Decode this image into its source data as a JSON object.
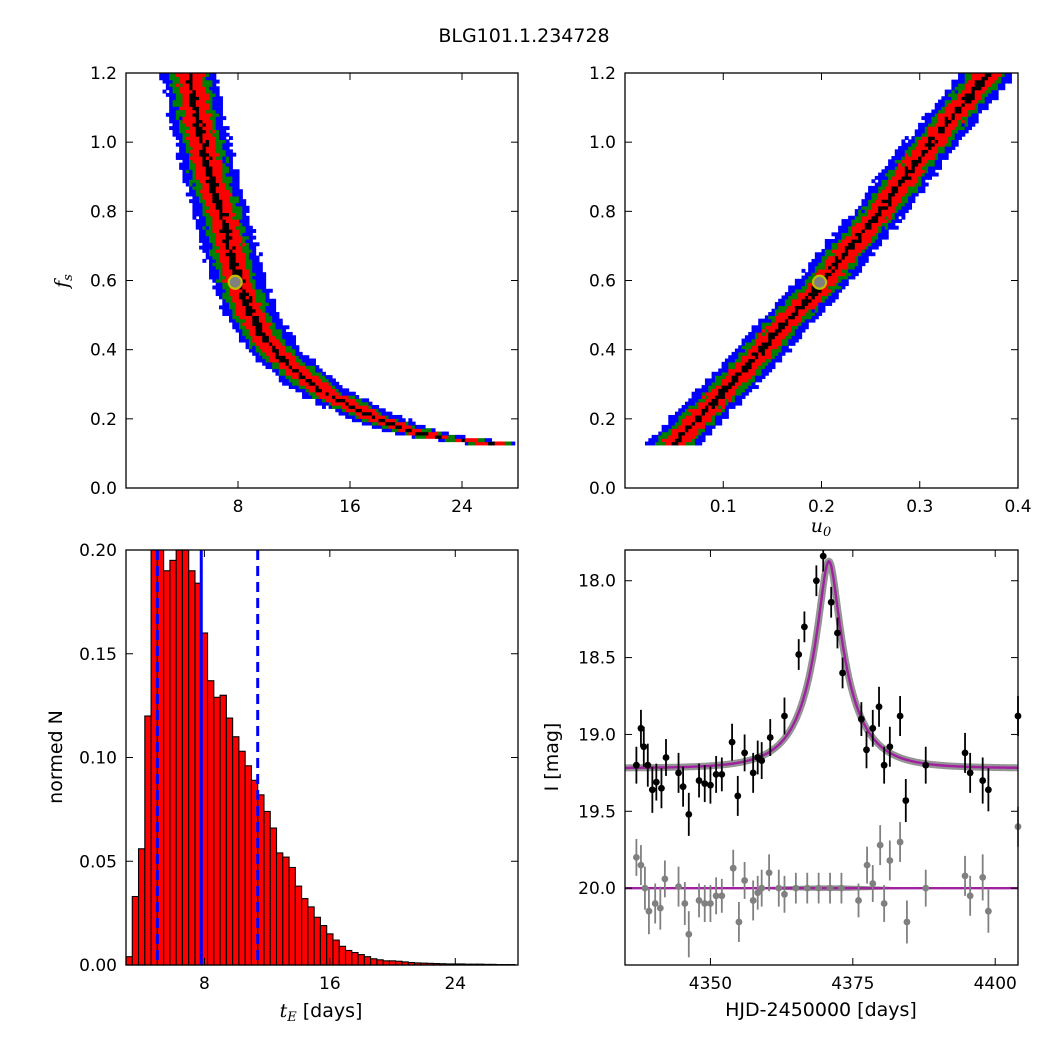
{
  "title": "BLG101.1.234728",
  "colors": {
    "blue": "#0000ff",
    "green": "#007f00",
    "red": "#ff0000",
    "black": "#000000",
    "marker_edge": "#bfbf00",
    "marker_face": "#808080",
    "model": "#a020a0",
    "model_band": "#707070",
    "baseline_points": "#808080"
  },
  "chart_data": [
    {
      "type": "heatmap",
      "panel": "top-left",
      "xlabel": "",
      "ylabel": "f_s",
      "ylabel_main": "f",
      "ylabel_sub": "s",
      "xlim": [
        0,
        28
      ],
      "ylim": [
        0.0,
        1.2
      ],
      "xticks": [
        8,
        16,
        24
      ],
      "yticks": [
        0.0,
        0.2,
        0.4,
        0.6,
        0.8,
        1.0,
        1.2
      ],
      "xtick_labels": [
        "8",
        "16",
        "24"
      ],
      "ytick_labels": [
        "0.0",
        "0.2",
        "0.4",
        "0.6",
        "0.8",
        "1.0",
        "1.2"
      ],
      "ridge": [
        [
          4.5,
          1.2
        ],
        [
          5.2,
          1.05
        ],
        [
          6.0,
          0.9
        ],
        [
          6.8,
          0.8
        ],
        [
          7.5,
          0.68
        ],
        [
          8.0,
          0.6
        ],
        [
          9.0,
          0.5
        ],
        [
          10.0,
          0.43
        ],
        [
          11.0,
          0.38
        ],
        [
          12.5,
          0.33
        ],
        [
          14.0,
          0.28
        ],
        [
          16.0,
          0.24
        ],
        [
          18.0,
          0.2
        ],
        [
          20.0,
          0.17
        ],
        [
          22.0,
          0.15
        ],
        [
          24.0,
          0.14
        ],
        [
          26.0,
          0.13
        ]
      ],
      "best_fit": {
        "x": 7.8,
        "y": 0.595
      }
    },
    {
      "type": "heatmap",
      "panel": "top-right",
      "xlabel": "u_0",
      "xlabel_main": "u",
      "xlabel_sub": "0",
      "ylabel": "",
      "xlim": [
        0.0,
        0.4
      ],
      "ylim": [
        0.0,
        1.2
      ],
      "xticks": [
        0.1,
        0.2,
        0.3,
        0.4
      ],
      "yticks": [
        0.0,
        0.2,
        0.4,
        0.6,
        0.8,
        1.0,
        1.2
      ],
      "xtick_labels": [
        "0.1",
        "0.2",
        "0.3",
        "0.4"
      ],
      "ytick_labels": [
        "0.0",
        "0.2",
        "0.4",
        "0.6",
        "0.8",
        "1.0",
        "1.2"
      ],
      "ridge": [
        [
          0.05,
          0.13
        ],
        [
          0.08,
          0.22
        ],
        [
          0.1,
          0.28
        ],
        [
          0.13,
          0.37
        ],
        [
          0.16,
          0.47
        ],
        [
          0.2,
          0.59
        ],
        [
          0.23,
          0.7
        ],
        [
          0.26,
          0.8
        ],
        [
          0.29,
          0.92
        ],
        [
          0.32,
          1.03
        ],
        [
          0.35,
          1.13
        ],
        [
          0.37,
          1.2
        ]
      ],
      "best_fit": {
        "x": 0.198,
        "y": 0.595
      }
    },
    {
      "type": "bar",
      "panel": "bottom-left",
      "xlabel": "t_E [days]",
      "xlabel_main": "t",
      "xlabel_sub": "E",
      "xlabel_unit": "[days]",
      "ylabel": "normed N",
      "xlim": [
        3,
        28
      ],
      "ylim": [
        0.0,
        0.2
      ],
      "xticks": [
        8,
        16,
        24
      ],
      "yticks": [
        0.0,
        0.05,
        0.1,
        0.15,
        0.2
      ],
      "xtick_labels": [
        "8",
        "16",
        "24"
      ],
      "ytick_labels": [
        "0.00",
        "0.05",
        "0.10",
        "0.15",
        "0.20"
      ],
      "bin_start": 3.0,
      "bin_width": 0.4,
      "values": [
        0.004,
        0.033,
        0.056,
        0.12,
        0.2,
        0.2,
        0.19,
        0.195,
        0.2,
        0.2,
        0.19,
        0.184,
        0.16,
        0.137,
        0.129,
        0.13,
        0.119,
        0.11,
        0.103,
        0.096,
        0.089,
        0.082,
        0.074,
        0.066,
        0.054,
        0.052,
        0.047,
        0.038,
        0.032,
        0.028,
        0.023,
        0.019,
        0.015,
        0.012,
        0.009,
        0.007,
        0.006,
        0.005,
        0.004,
        0.003,
        0.0025,
        0.002,
        0.002,
        0.0018,
        0.0015,
        0.0012,
        0.001,
        0.0009,
        0.0008,
        0.0007,
        0.0006,
        0.0005,
        0.0005,
        0.0005,
        0.0004,
        0.0004,
        0.0004,
        0.0003,
        0.0003,
        0.0002,
        0.0002,
        0.0002
      ],
      "median": 7.8,
      "lower": 5.0,
      "upper": 11.4
    },
    {
      "type": "scatter",
      "panel": "bottom-right",
      "xlabel": "HJD-2450000 [days]",
      "ylabel": "I [mag]",
      "xlim": [
        4335,
        4404
      ],
      "ylim": [
        20.5,
        17.8
      ],
      "y_inverted": true,
      "xticks": [
        4350,
        4375,
        4400
      ],
      "yticks": [
        18.0,
        18.5,
        19.0,
        19.5,
        20.0
      ],
      "xtick_labels": [
        "4350",
        "4375",
        "4400"
      ],
      "ytick_labels": [
        "18.0",
        "18.5",
        "19.0",
        "19.5",
        "20.0"
      ],
      "model": {
        "t0": 4370.8,
        "u0": 0.198,
        "tE": 7.8,
        "fs": 0.595,
        "baseline": 19.22
      },
      "residual_baseline": 20.0,
      "points": [
        [
          4337.0,
          19.2,
          0.12
        ],
        [
          4337.8,
          18.96,
          0.12
        ],
        [
          4338.3,
          19.08,
          0.13
        ],
        [
          4339.0,
          19.2,
          0.14
        ],
        [
          4339.8,
          19.36,
          0.15
        ],
        [
          4340.5,
          19.31,
          0.12
        ],
        [
          4341.4,
          19.35,
          0.13
        ],
        [
          4342.2,
          19.15,
          0.12
        ],
        [
          4344.4,
          19.25,
          0.13
        ],
        [
          4345.2,
          19.34,
          0.13
        ],
        [
          4346.2,
          19.52,
          0.14
        ],
        [
          4348.0,
          19.3,
          0.11
        ],
        [
          4349.0,
          19.32,
          0.12
        ],
        [
          4350.0,
          19.33,
          0.12
        ],
        [
          4351.0,
          19.26,
          0.12
        ],
        [
          4352.0,
          19.26,
          0.11
        ],
        [
          4353.8,
          19.05,
          0.12
        ],
        [
          4354.8,
          19.4,
          0.13
        ],
        [
          4356.0,
          19.12,
          0.12
        ],
        [
          4357.5,
          19.25,
          0.13
        ],
        [
          4358.3,
          19.15,
          0.11
        ],
        [
          4359.0,
          19.17,
          0.12
        ],
        [
          4360.5,
          19.02,
          0.12
        ],
        [
          4363.0,
          18.88,
          0.12
        ],
        [
          4365.5,
          18.48,
          0.1
        ],
        [
          4366.5,
          18.3,
          0.1
        ],
        [
          4368.6,
          18.0,
          0.1
        ],
        [
          4369.8,
          17.84,
          0.1
        ],
        [
          4371.2,
          18.14,
          0.1
        ],
        [
          4372.3,
          18.34,
          0.1
        ],
        [
          4373.2,
          18.6,
          0.1
        ],
        [
          4376.5,
          18.9,
          0.11
        ],
        [
          4377.4,
          19.1,
          0.12
        ],
        [
          4378.5,
          18.96,
          0.12
        ],
        [
          4379.6,
          18.82,
          0.13
        ],
        [
          4380.5,
          19.2,
          0.12
        ],
        [
          4381.5,
          19.08,
          0.13
        ],
        [
          4383.3,
          18.88,
          0.13
        ],
        [
          4384.3,
          19.43,
          0.14
        ],
        [
          4387.8,
          19.2,
          0.12
        ],
        [
          4394.7,
          19.12,
          0.13
        ],
        [
          4395.6,
          19.25,
          0.13
        ],
        [
          4397.8,
          19.3,
          0.15
        ],
        [
          4398.8,
          19.36,
          0.14
        ],
        [
          4404.0,
          18.88,
          0.13
        ]
      ],
      "residual_points": [
        [
          4337.0,
          19.8,
          0.12
        ],
        [
          4337.8,
          19.85,
          0.13
        ],
        [
          4338.5,
          20.0,
          0.14
        ],
        [
          4339.2,
          20.15,
          0.15
        ],
        [
          4340.3,
          20.1,
          0.13
        ],
        [
          4341.2,
          20.13,
          0.14
        ],
        [
          4342.0,
          19.94,
          0.12
        ],
        [
          4344.4,
          19.99,
          0.13
        ],
        [
          4345.5,
          20.1,
          0.14
        ],
        [
          4346.2,
          20.3,
          0.15
        ],
        [
          4348.0,
          20.08,
          0.11
        ],
        [
          4349.0,
          20.1,
          0.12
        ],
        [
          4350.0,
          20.1,
          0.12
        ],
        [
          4351.0,
          20.05,
          0.12
        ],
        [
          4352.0,
          20.05,
          0.11
        ],
        [
          4354.0,
          19.87,
          0.12
        ],
        [
          4355.0,
          20.22,
          0.13
        ],
        [
          4356.0,
          19.95,
          0.12
        ],
        [
          4357.5,
          20.08,
          0.13
        ],
        [
          4358.3,
          20.03,
          0.11
        ],
        [
          4359.0,
          20.0,
          0.12
        ],
        [
          4360.3,
          19.9,
          0.12
        ],
        [
          4362.0,
          20.0,
          0.12
        ],
        [
          4363.0,
          20.04,
          0.12
        ],
        [
          4365.0,
          20.0,
          0.1
        ],
        [
          4367.0,
          20.0,
          0.1
        ],
        [
          4369.0,
          20.0,
          0.1
        ],
        [
          4371.0,
          20.0,
          0.1
        ],
        [
          4373.0,
          20.0,
          0.1
        ],
        [
          4376.0,
          20.08,
          0.11
        ],
        [
          4377.5,
          19.85,
          0.12
        ],
        [
          4378.5,
          19.97,
          0.12
        ],
        [
          4379.8,
          19.72,
          0.13
        ],
        [
          4380.5,
          20.1,
          0.12
        ],
        [
          4381.5,
          19.82,
          0.13
        ],
        [
          4383.3,
          19.7,
          0.13
        ],
        [
          4384.5,
          20.22,
          0.14
        ],
        [
          4387.8,
          20.0,
          0.12
        ],
        [
          4394.7,
          19.92,
          0.13
        ],
        [
          4395.6,
          20.05,
          0.13
        ],
        [
          4397.8,
          19.93,
          0.15
        ],
        [
          4398.8,
          20.15,
          0.14
        ],
        [
          4404.0,
          19.6,
          0.13
        ]
      ]
    }
  ]
}
